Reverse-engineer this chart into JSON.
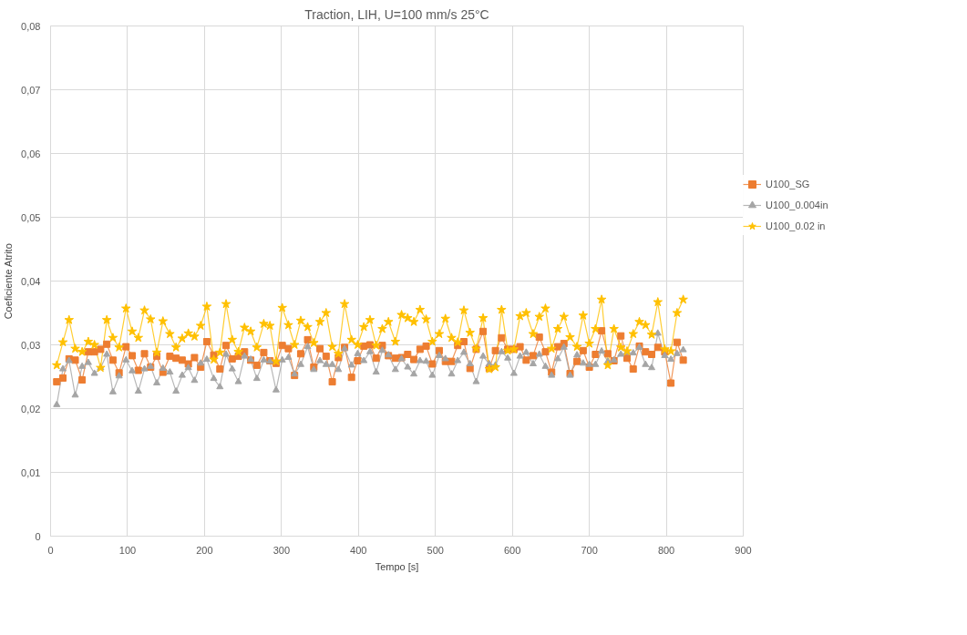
{
  "chart_data": {
    "type": "line",
    "title": "Traction, LIH, U=100 mm/s 25°C",
    "xlabel": "Tempo [s]",
    "ylabel": "Coeficiente Atrito",
    "x": [
      8,
      16,
      24,
      32,
      41,
      49,
      57,
      65,
      73,
      81,
      89,
      98,
      106,
      114,
      122,
      130,
      138,
      146,
      155,
      163,
      171,
      179,
      187,
      195,
      203,
      212,
      220,
      228,
      236,
      244,
      252,
      260,
      268,
      277,
      285,
      293,
      301,
      309,
      317,
      325,
      334,
      342,
      350,
      358,
      366,
      374,
      382,
      391,
      399,
      407,
      415,
      423,
      431,
      439,
      448,
      456,
      464,
      472,
      480,
      488,
      496,
      505,
      513,
      521,
      529,
      537,
      545,
      553,
      562,
      570,
      578,
      586,
      594,
      602,
      610,
      618,
      627,
      635,
      643,
      651,
      659,
      667,
      675,
      684,
      692,
      700,
      708,
      716,
      724,
      732,
      741,
      749,
      757,
      765,
      773,
      781,
      789,
      798,
      806,
      814,
      822
    ],
    "series": [
      {
        "name": "U100_SG",
        "color": "#ed7d31",
        "marker": "square",
        "values": [
          0.0242,
          0.0248,
          0.0278,
          0.0276,
          0.0245,
          0.0289,
          0.0289,
          0.0293,
          0.0301,
          0.0276,
          0.0256,
          0.0297,
          0.0283,
          0.026,
          0.0286,
          0.0265,
          0.0282,
          0.0257,
          0.0282,
          0.0279,
          0.0276,
          0.027,
          0.028,
          0.0265,
          0.0305,
          0.0284,
          0.0262,
          0.0299,
          0.0278,
          0.0282,
          0.0289,
          0.0276,
          0.0268,
          0.0288,
          0.0275,
          0.0271,
          0.0299,
          0.0294,
          0.0252,
          0.0286,
          0.0308,
          0.0265,
          0.0294,
          0.0282,
          0.0242,
          0.028,
          0.0296,
          0.0249,
          0.0275,
          0.0298,
          0.03,
          0.0279,
          0.0299,
          0.0283,
          0.0279,
          0.028,
          0.0285,
          0.0277,
          0.0293,
          0.0298,
          0.027,
          0.0291,
          0.0274,
          0.0274,
          0.0299,
          0.0305,
          0.0263,
          0.0293,
          0.0321,
          0.0263,
          0.0291,
          0.0311,
          0.0293,
          0.0293,
          0.0297,
          0.0276,
          0.0283,
          0.0312,
          0.0289,
          0.0257,
          0.0297,
          0.0302,
          0.0255,
          0.0274,
          0.0291,
          0.0265,
          0.0285,
          0.0322,
          0.0286,
          0.0275,
          0.0314,
          0.0279,
          0.0262,
          0.0298,
          0.0289,
          0.0285,
          0.0296,
          0.0289,
          0.024,
          0.0304,
          0.0276
        ]
      },
      {
        "name": "U100_0.004in",
        "color": "#a5a5a5",
        "marker": "triangle",
        "values": [
          0.0206,
          0.0262,
          0.0275,
          0.0221,
          0.0266,
          0.0272,
          0.0255,
          0.0264,
          0.0285,
          0.0226,
          0.0251,
          0.0276,
          0.0259,
          0.0227,
          0.0262,
          0.0266,
          0.024,
          0.0263,
          0.0257,
          0.0227,
          0.0252,
          0.0264,
          0.0244,
          0.0271,
          0.0277,
          0.0247,
          0.0234,
          0.0285,
          0.0262,
          0.0242,
          0.0282,
          0.0277,
          0.0247,
          0.0276,
          0.0274,
          0.0229,
          0.0276,
          0.028,
          0.0254,
          0.0269,
          0.0297,
          0.0261,
          0.0275,
          0.0269,
          0.0269,
          0.0261,
          0.0294,
          0.0268,
          0.0286,
          0.0275,
          0.0289,
          0.0257,
          0.0291,
          0.0284,
          0.0261,
          0.0278,
          0.0265,
          0.0254,
          0.0275,
          0.0274,
          0.0252,
          0.0283,
          0.0278,
          0.0254,
          0.0275,
          0.0288,
          0.027,
          0.0242,
          0.0282,
          0.027,
          0.0268,
          0.0289,
          0.0279,
          0.0255,
          0.0282,
          0.0288,
          0.027,
          0.0285,
          0.0266,
          0.0252,
          0.0278,
          0.0296,
          0.0252,
          0.0284,
          0.0271,
          0.0269,
          0.0269,
          0.029,
          0.0274,
          0.0276,
          0.0285,
          0.0288,
          0.0287,
          0.0296,
          0.0269,
          0.0264,
          0.0318,
          0.0283,
          0.0277,
          0.0286,
          0.0292
        ]
      },
      {
        "name": "U100_0.02 in",
        "color": "#ffc000",
        "marker": "star",
        "values": [
          0.0268,
          0.0304,
          0.0339,
          0.0294,
          0.0289,
          0.0305,
          0.03,
          0.0264,
          0.0339,
          0.0311,
          0.0296,
          0.0357,
          0.0321,
          0.0311,
          0.0354,
          0.034,
          0.0288,
          0.0337,
          0.0317,
          0.0296,
          0.031,
          0.0318,
          0.0313,
          0.033,
          0.036,
          0.0277,
          0.0288,
          0.0364,
          0.0308,
          0.0289,
          0.0327,
          0.0321,
          0.0296,
          0.0333,
          0.033,
          0.0274,
          0.0358,
          0.0331,
          0.03,
          0.0338,
          0.0328,
          0.0303,
          0.0336,
          0.035,
          0.0297,
          0.0286,
          0.0364,
          0.0308,
          0.03,
          0.0328,
          0.0339,
          0.0299,
          0.0325,
          0.0336,
          0.0305,
          0.0347,
          0.0342,
          0.0336,
          0.0355,
          0.034,
          0.0305,
          0.0317,
          0.0341,
          0.0311,
          0.0304,
          0.0354,
          0.0319,
          0.0294,
          0.0342,
          0.0262,
          0.0265,
          0.0355,
          0.0291,
          0.0293,
          0.0345,
          0.035,
          0.0317,
          0.0344,
          0.0357,
          0.0294,
          0.0325,
          0.0344,
          0.0312,
          0.0297,
          0.0346,
          0.0302,
          0.0325,
          0.0371,
          0.0268,
          0.0325,
          0.0296,
          0.029,
          0.0317,
          0.0336,
          0.0331,
          0.0316,
          0.0367,
          0.0293,
          0.029,
          0.035,
          0.0371
        ]
      }
    ],
    "xlim": [
      0,
      900
    ],
    "xticks": [
      0,
      100,
      200,
      300,
      400,
      500,
      600,
      700,
      800,
      900
    ],
    "ylim": [
      0,
      0.08
    ],
    "yticks": [
      0,
      {
        "value": 0.01,
        "label": "0,01"
      },
      {
        "value": 0.02,
        "label": "0,02"
      },
      {
        "value": 0.03,
        "label": "0,03"
      },
      {
        "value": 0.04,
        "label": "0,04"
      },
      {
        "value": 0.05,
        "label": "0,05"
      },
      {
        "value": 0.06,
        "label": "0,06"
      },
      {
        "value": 0.07,
        "label": "0,07"
      },
      {
        "value": 0.08,
        "label": "0,08"
      }
    ],
    "grid": true,
    "legend": "right",
    "line_style": "solid"
  }
}
